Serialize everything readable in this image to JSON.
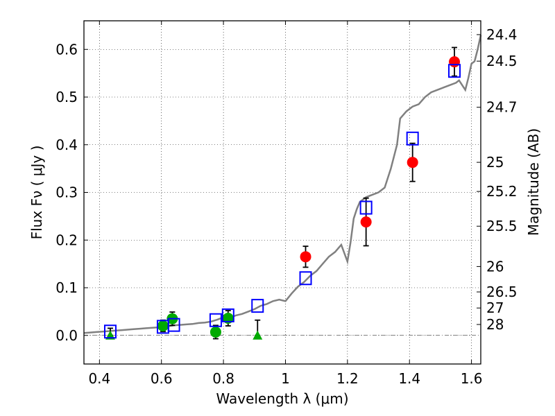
{
  "chart_data": {
    "type": "scatter",
    "xlabel": "Wavelength  λ (μm)",
    "ylabel": "Flux  Fν  ( μJy )",
    "y2label": "Magnitude (AB)",
    "xlim": [
      0.35,
      1.63
    ],
    "ylim": [
      -0.06,
      0.66
    ],
    "x_ticks": [
      0.4,
      0.6,
      0.8,
      1.0,
      1.2,
      1.4,
      1.6
    ],
    "x_tick_labels": [
      "0.4",
      "0.6",
      "0.8",
      "1",
      "1.2",
      "1.4",
      "1.6"
    ],
    "y_ticks": [
      0.0,
      0.1,
      0.2,
      0.3,
      0.4,
      0.5,
      0.6
    ],
    "y_tick_labels": [
      "0.0",
      "0.1",
      "0.2",
      "0.3",
      "0.4",
      "0.5",
      "0.6"
    ],
    "mag_ticks": [
      {
        "label": "24.4",
        "flux": 0.631
      },
      {
        "label": "24.5",
        "flux": 0.5754
      },
      {
        "label": "24.7",
        "flux": 0.4786
      },
      {
        "label": "25",
        "flux": 0.3631
      },
      {
        "label": "25.2",
        "flux": 0.302
      },
      {
        "label": "25.5",
        "flux": 0.2291
      },
      {
        "label": "26",
        "flux": 0.1445
      },
      {
        "label": "26.5",
        "flux": 0.0912
      },
      {
        "label": "27",
        "flux": 0.0575
      },
      {
        "label": "28",
        "flux": 0.0229
      }
    ],
    "grid": true,
    "colors": {
      "model": "#808080",
      "red": "#ff0000",
      "green": "#00aa00",
      "blue": "#0000ff",
      "errorbar": "#000000"
    },
    "series": [
      {
        "marker": "line",
        "points": [
          [
            0.35,
            0.005
          ],
          [
            0.37,
            0.006
          ],
          [
            0.39,
            0.007
          ],
          [
            0.41,
            0.008
          ],
          [
            0.43,
            0.009
          ],
          [
            0.45,
            0.01
          ],
          [
            0.47,
            0.011
          ],
          [
            0.49,
            0.012
          ],
          [
            0.51,
            0.013
          ],
          [
            0.53,
            0.014
          ],
          [
            0.55,
            0.015
          ],
          [
            0.57,
            0.016
          ],
          [
            0.59,
            0.017
          ],
          [
            0.6,
            0.018
          ],
          [
            0.62,
            0.019
          ],
          [
            0.64,
            0.021
          ],
          [
            0.66,
            0.022
          ],
          [
            0.68,
            0.023
          ],
          [
            0.7,
            0.024
          ],
          [
            0.72,
            0.026
          ],
          [
            0.74,
            0.027
          ],
          [
            0.76,
            0.029
          ],
          [
            0.78,
            0.033
          ],
          [
            0.8,
            0.038
          ],
          [
            0.82,
            0.036
          ],
          [
            0.84,
            0.042
          ],
          [
            0.86,
            0.045
          ],
          [
            0.88,
            0.05
          ],
          [
            0.9,
            0.055
          ],
          [
            0.92,
            0.062
          ],
          [
            0.94,
            0.066
          ],
          [
            0.96,
            0.072
          ],
          [
            0.98,
            0.075
          ],
          [
            1.0,
            0.072
          ],
          [
            1.02,
            0.088
          ],
          [
            1.04,
            0.102
          ],
          [
            1.06,
            0.112
          ],
          [
            1.08,
            0.125
          ],
          [
            1.1,
            0.135
          ],
          [
            1.12,
            0.15
          ],
          [
            1.14,
            0.165
          ],
          [
            1.16,
            0.175
          ],
          [
            1.18,
            0.19
          ],
          [
            1.2,
            0.155
          ],
          [
            1.21,
            0.195
          ],
          [
            1.22,
            0.245
          ],
          [
            1.23,
            0.265
          ],
          [
            1.24,
            0.28
          ],
          [
            1.26,
            0.29
          ],
          [
            1.28,
            0.295
          ],
          [
            1.3,
            0.3
          ],
          [
            1.32,
            0.31
          ],
          [
            1.34,
            0.35
          ],
          [
            1.36,
            0.4
          ],
          [
            1.37,
            0.455
          ],
          [
            1.39,
            0.47
          ],
          [
            1.41,
            0.48
          ],
          [
            1.43,
            0.485
          ],
          [
            1.45,
            0.5
          ],
          [
            1.47,
            0.51
          ],
          [
            1.49,
            0.515
          ],
          [
            1.51,
            0.52
          ],
          [
            1.53,
            0.525
          ],
          [
            1.55,
            0.53
          ],
          [
            1.56,
            0.535
          ],
          [
            1.57,
            0.525
          ],
          [
            1.58,
            0.515
          ],
          [
            1.59,
            0.54
          ],
          [
            1.6,
            0.57
          ],
          [
            1.61,
            0.575
          ],
          [
            1.62,
            0.6
          ],
          [
            1.63,
            0.63
          ]
        ]
      },
      {
        "marker": "circle",
        "points": [
          {
            "x": 1.065,
            "y": 0.165,
            "err": 0.022
          },
          {
            "x": 1.26,
            "y": 0.238,
            "err": 0.05
          },
          {
            "x": 1.41,
            "y": 0.363,
            "err": 0.04
          },
          {
            "x": 1.545,
            "y": 0.574,
            "err": 0.03
          }
        ]
      },
      {
        "marker": "circle",
        "points": [
          {
            "x": 0.605,
            "y": 0.02,
            "err": 0.012
          },
          {
            "x": 0.635,
            "y": 0.035,
            "err": 0.014
          },
          {
            "x": 0.775,
            "y": 0.007,
            "err": 0.014
          },
          {
            "x": 0.815,
            "y": 0.036,
            "err": 0.016
          }
        ]
      },
      {
        "marker": "triangle",
        "points": [
          {
            "x": 0.435,
            "y": 0.0,
            "err_up": 0.015
          },
          {
            "x": 0.91,
            "y": 0.0,
            "err_up": 0.032
          }
        ]
      },
      {
        "marker": "square",
        "points": [
          {
            "x": 0.435,
            "y": 0.008
          },
          {
            "x": 0.605,
            "y": 0.018
          },
          {
            "x": 0.64,
            "y": 0.022
          },
          {
            "x": 0.775,
            "y": 0.032
          },
          {
            "x": 0.815,
            "y": 0.042
          },
          {
            "x": 0.91,
            "y": 0.062
          },
          {
            "x": 1.065,
            "y": 0.12
          },
          {
            "x": 1.26,
            "y": 0.268
          },
          {
            "x": 1.41,
            "y": 0.413
          },
          {
            "x": 1.545,
            "y": 0.555
          }
        ]
      }
    ]
  }
}
